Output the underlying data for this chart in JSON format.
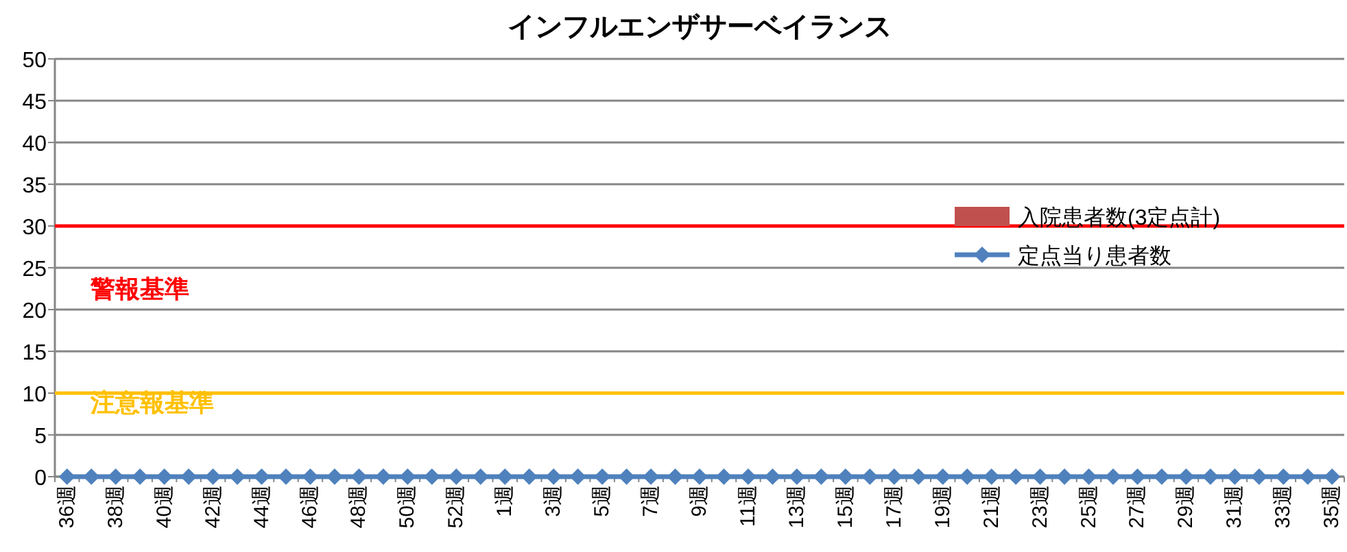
{
  "chart_data": {
    "type": "line",
    "title": "インフルエンザサーベイランス",
    "categories": [
      "36週",
      null,
      "38週",
      null,
      "40週",
      null,
      "42週",
      null,
      "44週",
      null,
      "46週",
      null,
      "48週",
      null,
      "50週",
      null,
      "52週",
      null,
      "1週",
      null,
      "3週",
      null,
      "5週",
      null,
      "7週",
      null,
      "9週",
      null,
      "11週",
      null,
      "13週",
      null,
      "15週",
      null,
      "17週",
      null,
      "19週",
      null,
      "21週",
      null,
      "23週",
      null,
      "25週",
      null,
      "27週",
      null,
      "29週",
      null,
      "31週",
      null,
      "33週",
      null,
      "35週"
    ],
    "series": [
      {
        "name": "入院患者数(3定点計)",
        "type": "bar",
        "color": "#c0504d",
        "values": [
          0,
          0,
          0,
          0,
          0,
          0,
          0,
          0,
          0,
          0,
          0,
          0,
          0,
          0,
          0,
          0,
          0,
          0,
          0,
          0,
          0,
          0,
          0,
          0,
          0,
          0,
          0,
          0,
          0,
          0,
          0,
          0,
          0,
          0,
          0,
          0,
          0,
          0,
          0,
          0,
          0,
          0,
          0,
          0,
          0,
          0,
          0,
          0,
          0,
          0,
          0,
          0,
          0
        ]
      },
      {
        "name": "定点当り患者数",
        "color": "#4f81bd",
        "marker": "diamond",
        "values": [
          0,
          0,
          0,
          0,
          0,
          0,
          0,
          0,
          0,
          0,
          0,
          0,
          0,
          0,
          0,
          0,
          0,
          0,
          0,
          0,
          0,
          0,
          0,
          0,
          0,
          0,
          0,
          0,
          0,
          0,
          0,
          0,
          0,
          0,
          0,
          0,
          0,
          0,
          0,
          0,
          0,
          0,
          0,
          0,
          0,
          0,
          0,
          0,
          0,
          0,
          0,
          0,
          0
        ]
      }
    ],
    "ylim": [
      0,
      50
    ],
    "yticks": [
      0,
      5,
      10,
      15,
      20,
      25,
      30,
      35,
      40,
      45,
      50
    ],
    "grid": "y",
    "legend": "top right",
    "ref_lines": [
      {
        "axis": "y",
        "value": 30,
        "label": "警報基準",
        "color": "#ff0000"
      },
      {
        "axis": "y",
        "value": 10,
        "label": "注意報基準",
        "color": "#ffc000"
      }
    ]
  }
}
